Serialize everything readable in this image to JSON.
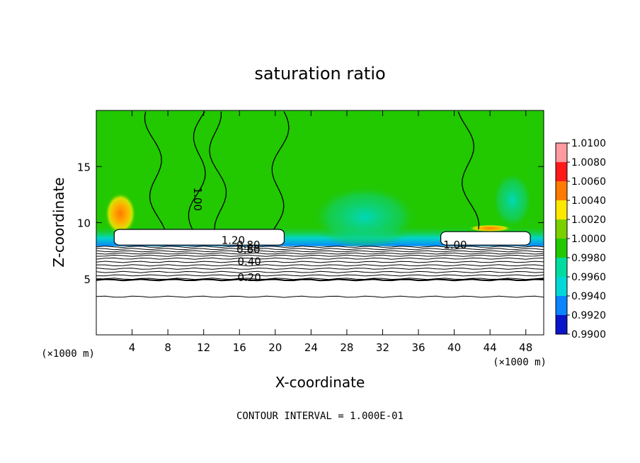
{
  "chart_data": {
    "type": "heatmap",
    "title": "saturation ratio",
    "xlabel": "X-coordinate",
    "ylabel": "Z-coordinate",
    "x_unit_label": "(×1000 m)",
    "x_unit_label_right": "(×1000 m)",
    "xlim": [
      0,
      50
    ],
    "ylim": [
      0,
      20
    ],
    "x_ticks": [
      4,
      8,
      12,
      16,
      20,
      24,
      28,
      32,
      36,
      40,
      44,
      48
    ],
    "y_ticks": [
      5,
      10,
      15
    ],
    "footer": "CONTOUR INTERVAL = 1.000E-01",
    "colorbar": {
      "labels": [
        "1.0100",
        "1.0080",
        "1.0060",
        "1.0040",
        "1.0020",
        "1.0000",
        "0.9980",
        "0.9960",
        "0.9940",
        "0.9920",
        "0.9900"
      ],
      "colors": [
        "#ff9aa0",
        "#ff1a1a",
        "#ff7a00",
        "#ffe800",
        "#7ad000",
        "#22c800",
        "#00dca0",
        "#00d8d8",
        "#0a84ff",
        "#0a14c8",
        "#7a10c8"
      ]
    },
    "contour_labels": [
      {
        "text": "1.00",
        "x": 10.9,
        "y": 12.1,
        "rotate": 90
      },
      {
        "text": "1.20",
        "x": 15.3,
        "y": 8.1
      },
      {
        "text": "0.80",
        "x": 17.0,
        "y": 7.7
      },
      {
        "text": "0.60",
        "x": 17.0,
        "y": 7.3
      },
      {
        "text": "0.40",
        "x": 17.1,
        "y": 6.2
      },
      {
        "text": "0.20",
        "x": 17.1,
        "y": 4.8
      },
      {
        "text": "1.00",
        "x": 40.1,
        "y": 7.7
      }
    ],
    "contour_levels_horizontal": [
      7.85,
      7.65,
      7.45,
      7.25,
      7.05,
      6.8,
      6.5,
      6.2,
      5.9,
      5.6,
      5.3,
      5.0,
      4.9,
      3.4
    ],
    "cloud_regions": [
      {
        "x0": 2.0,
        "x1": 21.0,
        "y0": 8.0,
        "y1": 9.4
      },
      {
        "x0": 38.5,
        "x1": 48.5,
        "y0": 8.0,
        "y1": 9.2
      }
    ]
  }
}
